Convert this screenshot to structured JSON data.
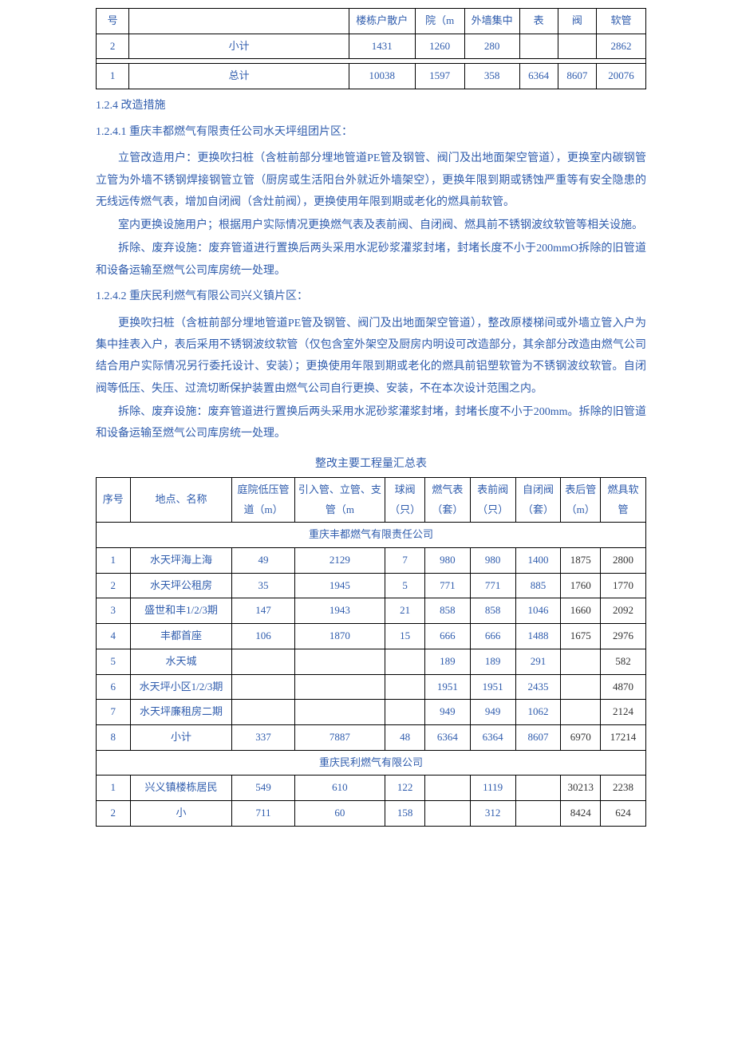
{
  "table1": {
    "headers": [
      "号",
      "",
      "楼栋户散户",
      "院（m",
      "外墙集中",
      "表",
      "阀",
      "软管"
    ],
    "row_subtotal": [
      "2",
      "小计",
      "1431",
      "1260",
      "280",
      "",
      "",
      "2862"
    ],
    "row_total": [
      "1",
      "总计",
      "10038",
      "1597",
      "358",
      "6364",
      "8607",
      "20076"
    ],
    "col_widths": [
      "6%",
      "40%",
      "12%",
      "9%",
      "10%",
      "7%",
      "7%",
      "9%"
    ]
  },
  "section124": "1.2.4  改造措施",
  "section1241": "1.2.4.1  重庆丰都燃气有限责任公司水天坪组团片区：",
  "para1": "立管改造用户：更换吹扫桩（含桩前部分埋地管道PE管及钢管、阀门及出地面架空管道），更换室内碳钢管立管为外墙不锈钢焊接钢管立管（厨房或生活阳台外就近外墙架空），更换年限到期或锈蚀严重等有安全隐患的无线远传燃气表，增加自闭阀（含灶前阀），更换使用年限到期或老化的燃具前软管。",
  "para2": "室内更换设施用户；根据用户实际情况更换燃气表及表前阀、自闭阀、燃具前不锈钢波纹软管等相关设施。",
  "para3": "拆除、废弃设施：废弃管道进行置换后两头采用水泥砂浆灌浆封堵，封堵长度不小于200mmO拆除的旧管道和设备运输至燃气公司库房统一处理。",
  "section1242": "1.2.4.2  重庆民利燃气有限公司兴义镇片区：",
  "para4": "更换吹扫桩（含桩前部分埋地管道PE管及钢管、阀门及出地面架空管道），整改原楼梯间或外墙立管入户为集中挂表入户，表后采用不锈钢波纹软管（仅包含室外架空及厨房内明设可改造部分，其余部分改造由燃气公司结合用户实际情况另行委托设计、安装）；更换使用年限到期或老化的燃具前铝塑软管为不锈钢波纹软管。自闭阀等低压、失压、过流切断保护装置由燃气公司自行更换、安装，不在本次设计范围之内。",
  "para5": "拆除、废弃设施：废弃管道进行置换后两头采用水泥砂浆灌浆封堵，封堵长度不小于200mm。拆除的旧管道和设备运输至燃气公司库房统一处理。",
  "table2": {
    "caption": "整改主要工程量汇总表",
    "headers": [
      "序号",
      "地点、名称",
      "庭院低压管道（m）",
      "引入管、立管、支管（m",
      "球阀（只）",
      "燃气表（套）",
      "表前阀（只）",
      "自闭阀（套）",
      "表后管（m）",
      "燃具软管"
    ],
    "group1": "重庆丰都燃气有限责任公司",
    "rows_g1": [
      [
        "1",
        "水天坪海上海",
        "49",
        "2129",
        "7",
        "980",
        "980",
        "1400",
        "1875",
        "2800"
      ],
      [
        "2",
        "水天坪公租房",
        "35",
        "1945",
        "5",
        "771",
        "771",
        "885",
        "1760",
        "1770"
      ],
      [
        "3",
        "盛世和丰1/2/3期",
        "147",
        "1943",
        "21",
        "858",
        "858",
        "1046",
        "1660",
        "2092"
      ],
      [
        "4",
        "丰都首座",
        "106",
        "1870",
        "15",
        "666",
        "666",
        "1488",
        "1675",
        "2976"
      ],
      [
        "5",
        "水天城",
        "",
        "",
        "",
        "189",
        "189",
        "291",
        "",
        "582"
      ],
      [
        "6",
        "水天坪小区1/2/3期",
        "",
        "",
        "",
        "1951",
        "1951",
        "2435",
        "",
        "4870"
      ],
      [
        "7",
        "水天坪廉租房二期",
        "",
        "",
        "",
        "949",
        "949",
        "1062",
        "",
        "2124"
      ],
      [
        "8",
        "小计",
        "337",
        "7887",
        "48",
        "6364",
        "6364",
        "8607",
        "6970",
        "17214"
      ]
    ],
    "group2": "重庆民利燃气有限公司",
    "rows_g2": [
      [
        "1",
        "兴义镇楼栋居民",
        "549",
        "610",
        "122",
        "",
        "1119",
        "",
        "30213",
        "2238"
      ],
      [
        "2",
        "小",
        "711",
        "60",
        "158",
        "",
        "312",
        "",
        "8424",
        "624"
      ]
    ],
    "col_widths": [
      "6%",
      "17%",
      "10%",
      "16%",
      "7%",
      "8%",
      "8%",
      "8%",
      "8%",
      "8%"
    ]
  },
  "colors": {
    "text_blue": "#2f5cad",
    "border": "#000",
    "bg": "#ffffff"
  }
}
